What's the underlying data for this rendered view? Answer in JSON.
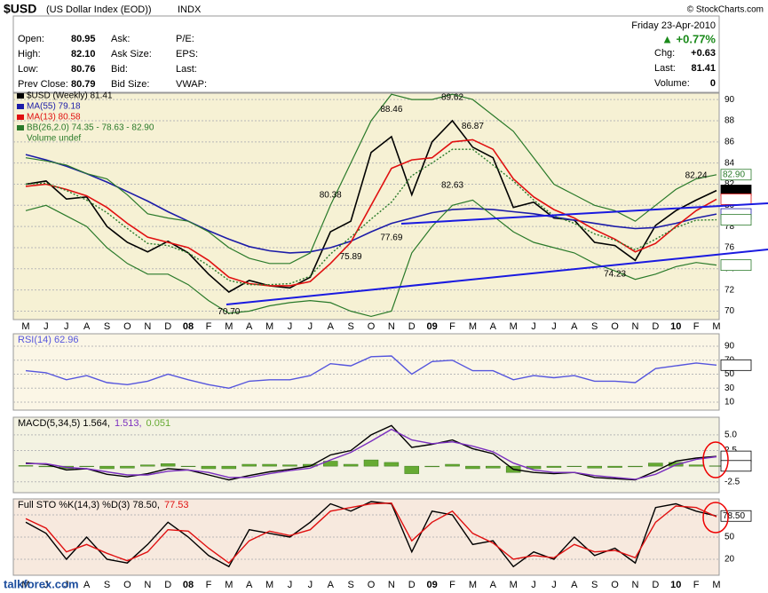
{
  "header": {
    "symbol": "$USD",
    "name": "(US Dollar Index (EOD))",
    "exchange": "INDX",
    "credit": "© StockCharts.com",
    "date": "Friday   23-Apr-2010",
    "change_pct": "▲ +0.77%",
    "quote": [
      [
        "Open:",
        "80.95",
        "Ask:",
        "P/E:"
      ],
      [
        "High:",
        "82.10",
        "Ask Size:",
        "EPS:"
      ],
      [
        "Low:",
        "80.76",
        "Bid:",
        "Last:"
      ],
      [
        "Prev Close:",
        "80.79",
        "Bid Size:",
        "VWAP:"
      ]
    ],
    "right": [
      [
        "Chg:",
        "+0.63"
      ],
      [
        "Last:",
        "81.41"
      ],
      [
        "Volume:",
        "0"
      ]
    ]
  },
  "watermark": "talkforex.com",
  "chart_data": [
    {
      "type": "line",
      "categories": [
        "M",
        "J",
        "J",
        "A",
        "S",
        "O",
        "N",
        "D",
        "08",
        "F",
        "M",
        "A",
        "M",
        "J",
        "J",
        "A",
        "S",
        "O",
        "N",
        "D",
        "09",
        "F",
        "M",
        "A",
        "M",
        "J",
        "J",
        "A",
        "S",
        "O",
        "N",
        "D",
        "10",
        "F",
        "M"
      ],
      "ylim": [
        69.2,
        90.6
      ],
      "yticks": [
        70,
        72,
        74,
        76,
        78,
        80,
        82,
        84,
        86,
        88,
        90
      ],
      "grid": true,
      "series": [
        {
          "name": "$USD (Weekly) 81.41",
          "color": "#000000",
          "values": [
            82.0,
            82.3,
            80.6,
            80.8,
            78.0,
            76.5,
            75.6,
            76.6,
            75.5,
            73.5,
            71.8,
            72.9,
            72.4,
            72.2,
            73.2,
            77.5,
            78.5,
            85.0,
            86.5,
            81.0,
            86.0,
            88.0,
            85.5,
            84.5,
            79.8,
            80.3,
            78.8,
            78.6,
            76.5,
            76.2,
            74.8,
            78.1,
            79.5,
            80.5,
            81.4
          ]
        },
        {
          "name": "MA(55) 79.18",
          "color": "#1c1ca8",
          "values": [
            84.8,
            84.3,
            83.7,
            83.0,
            82.2,
            81.3,
            80.4,
            79.4,
            78.5,
            77.6,
            76.8,
            76.1,
            75.7,
            75.5,
            75.6,
            76.0,
            76.6,
            77.5,
            78.3,
            78.8,
            79.3,
            79.6,
            79.7,
            79.6,
            79.4,
            79.2,
            78.9,
            78.6,
            78.3,
            78.0,
            77.8,
            77.9,
            78.3,
            78.8,
            79.18
          ]
        },
        {
          "name": "MA(13) 80.58",
          "color": "#e01010",
          "values": [
            81.8,
            82.0,
            81.5,
            80.9,
            79.8,
            78.3,
            77.0,
            76.5,
            76.0,
            74.8,
            73.2,
            72.6,
            72.4,
            72.4,
            72.8,
            74.5,
            76.5,
            80.0,
            83.5,
            84.3,
            84.5,
            86.0,
            86.2,
            85.3,
            82.5,
            80.8,
            79.6,
            78.8,
            77.7,
            76.8,
            75.6,
            76.4,
            78.0,
            79.5,
            80.58
          ]
        },
        {
          "name": "BB(26,2.0) 74.35 - 78.63 - 82.90",
          "color": "#2a7a2a",
          "dashed": true,
          "values": [
            82.0,
            82.1,
            81.4,
            80.5,
            79.3,
            77.8,
            76.4,
            76.2,
            75.5,
            74.3,
            72.9,
            72.5,
            72.5,
            72.6,
            73.3,
            75.4,
            77.0,
            78.7,
            80.3,
            82.8,
            84.0,
            85.3,
            85.3,
            83.8,
            82.3,
            80.5,
            79.0,
            78.3,
            77.3,
            76.7,
            75.8,
            76.8,
            77.9,
            78.6,
            78.63
          ],
          "upper": [
            84.5,
            84.2,
            83.8,
            83.0,
            82.5,
            81.0,
            79.2,
            78.8,
            78.5,
            77.5,
            76.0,
            75.0,
            74.5,
            74.5,
            75.5,
            80.0,
            84.0,
            88.0,
            90.5,
            90.0,
            90.0,
            90.5,
            90.0,
            88.5,
            87.0,
            84.5,
            82.0,
            81.0,
            80.0,
            79.5,
            78.5,
            80.0,
            81.5,
            82.5,
            82.9
          ],
          "lower": [
            79.5,
            80.0,
            79.0,
            78.0,
            76.0,
            74.5,
            73.5,
            73.5,
            72.5,
            71.0,
            69.8,
            70.0,
            70.5,
            70.8,
            71.0,
            70.8,
            70.0,
            69.5,
            70.0,
            75.5,
            78.0,
            80.0,
            80.5,
            79.0,
            77.5,
            76.5,
            76.0,
            75.5,
            74.5,
            73.8,
            73.0,
            73.5,
            74.2,
            74.6,
            74.35
          ]
        }
      ],
      "legend_extra": "Volume undef",
      "high_labels": [
        null,
        null,
        null,
        null,
        null,
        null,
        null,
        null,
        null,
        null,
        null,
        null,
        null,
        null,
        null,
        80.38,
        null,
        null,
        88.46,
        null,
        null,
        89.62,
        86.87,
        null,
        null,
        null,
        null,
        null,
        null,
        null,
        null,
        null,
        null,
        82.24,
        null
      ],
      "low_labels": [
        null,
        null,
        null,
        null,
        null,
        null,
        null,
        null,
        null,
        null,
        {
          "value": 70.7,
          "label": "70.70"
        },
        null,
        null,
        null,
        null,
        null,
        75.89,
        null,
        77.69,
        null,
        null,
        82.63,
        null,
        null,
        null,
        null,
        null,
        null,
        null,
        74.23,
        null,
        null,
        null,
        null,
        null
      ],
      "markers": [
        {
          "value": 82.9,
          "label": "82.90",
          "color": "#2a7a2a"
        },
        {
          "value": 81.41,
          "color": "#000000"
        },
        {
          "value": 80.58,
          "color": "#e01010"
        },
        {
          "value": 79.18,
          "color": "#1c1ca8"
        },
        {
          "value": 78.63,
          "color": "#2a7a2a"
        },
        {
          "value": 74.35,
          "color": "#2a7a2a"
        }
      ]
    },
    {
      "type": "line",
      "ylim": [
        -1.4,
        107.8
      ],
      "yticks": [
        10,
        30,
        50,
        70,
        90
      ],
      "grid": true,
      "series": [
        {
          "name": "RSI(14) 62.96",
          "color": "#5555dd",
          "values": [
            55,
            52,
            42,
            48,
            38,
            35,
            40,
            50,
            42,
            35,
            30,
            40,
            42,
            42,
            48,
            65,
            62,
            75,
            76,
            50,
            68,
            70,
            55,
            55,
            42,
            48,
            45,
            48,
            40,
            40,
            38,
            58,
            62,
            66,
            62.96
          ]
        }
      ],
      "markers": [
        {
          "value": 62.96,
          "color": "#000000"
        }
      ]
    },
    {
      "type": "line",
      "ylim": [
        -4.24,
        7.83
      ],
      "yticks": [
        {
          "value": 5,
          "label": "5.0"
        },
        2.5,
        -2.5
      ],
      "grid": true,
      "series": [
        {
          "name": "0.051",
          "type": "bar",
          "color": "#66aa33",
          "values": [
            0.1,
            -0.1,
            -0.4,
            0,
            -0.4,
            -0.3,
            0.2,
            0.4,
            0,
            -0.4,
            -0.4,
            0.3,
            0.3,
            0.2,
            0.3,
            0.8,
            0.3,
            1.0,
            0.6,
            -1.2,
            -0.1,
            0.3,
            -0.4,
            -0.3,
            -1.0,
            -0.4,
            -0.2,
            0,
            -0.3,
            -0.2,
            -0.1,
            0.5,
            0.6,
            0.2,
            0.051
          ]
        },
        {
          "name": "MACD(5,34,5) 1.564,",
          "color": "#000000",
          "values": [
            0.5,
            0.3,
            -0.6,
            -0.4,
            -1.3,
            -1.7,
            -1.2,
            -0.4,
            -0.6,
            -1.4,
            -2.2,
            -1.5,
            -0.9,
            -0.5,
            0.0,
            1.8,
            2.5,
            5.0,
            6.5,
            3.0,
            3.5,
            4.2,
            2.8,
            2.0,
            -0.5,
            -1.0,
            -1.2,
            -1.0,
            -1.8,
            -2.0,
            -2.2,
            -0.8,
            0.8,
            1.3,
            1.564
          ]
        },
        {
          "name": "1.513,",
          "color": "#7b2fbf",
          "values": [
            0.4,
            0.4,
            -0.2,
            -0.4,
            -0.9,
            -1.4,
            -1.4,
            -0.8,
            -0.6,
            -1.0,
            -1.8,
            -1.8,
            -1.2,
            -0.7,
            -0.3,
            1.0,
            2.2,
            4.0,
            5.9,
            4.2,
            3.6,
            3.9,
            3.2,
            2.3,
            0.5,
            -0.6,
            -1.0,
            -1.0,
            -1.5,
            -1.8,
            -2.1,
            -1.3,
            0.2,
            1.1,
            1.513
          ]
        }
      ],
      "markers": [
        {
          "value": 1.564,
          "color": "#000000"
        },
        {
          "value": 0.051,
          "color": "#000000"
        }
      ]
    },
    {
      "type": "line",
      "ylim": [
        -1.6,
        101.6
      ],
      "yticks": [
        20,
        50,
        80
      ],
      "grid": true,
      "series": [
        {
          "name": "Full STO %K(14,3) %D(3) 78.50,",
          "color": "#000000",
          "values": [
            70,
            55,
            20,
            50,
            20,
            15,
            40,
            70,
            50,
            25,
            10,
            60,
            55,
            50,
            70,
            95,
            85,
            98,
            95,
            30,
            85,
            80,
            40,
            45,
            10,
            30,
            20,
            50,
            25,
            35,
            15,
            90,
            95,
            85,
            78.5
          ]
        },
        {
          "name": "77.53",
          "color": "#e01010",
          "values": [
            75,
            62,
            30,
            40,
            28,
            18,
            30,
            60,
            58,
            35,
            15,
            45,
            58,
            52,
            60,
            85,
            90,
            95,
            96,
            45,
            70,
            85,
            55,
            42,
            20,
            25,
            22,
            40,
            30,
            32,
            22,
            70,
            92,
            90,
            77.53
          ]
        }
      ],
      "markers": [
        {
          "value": 78.5,
          "label": "78.50",
          "color": "#000000"
        }
      ]
    }
  ]
}
